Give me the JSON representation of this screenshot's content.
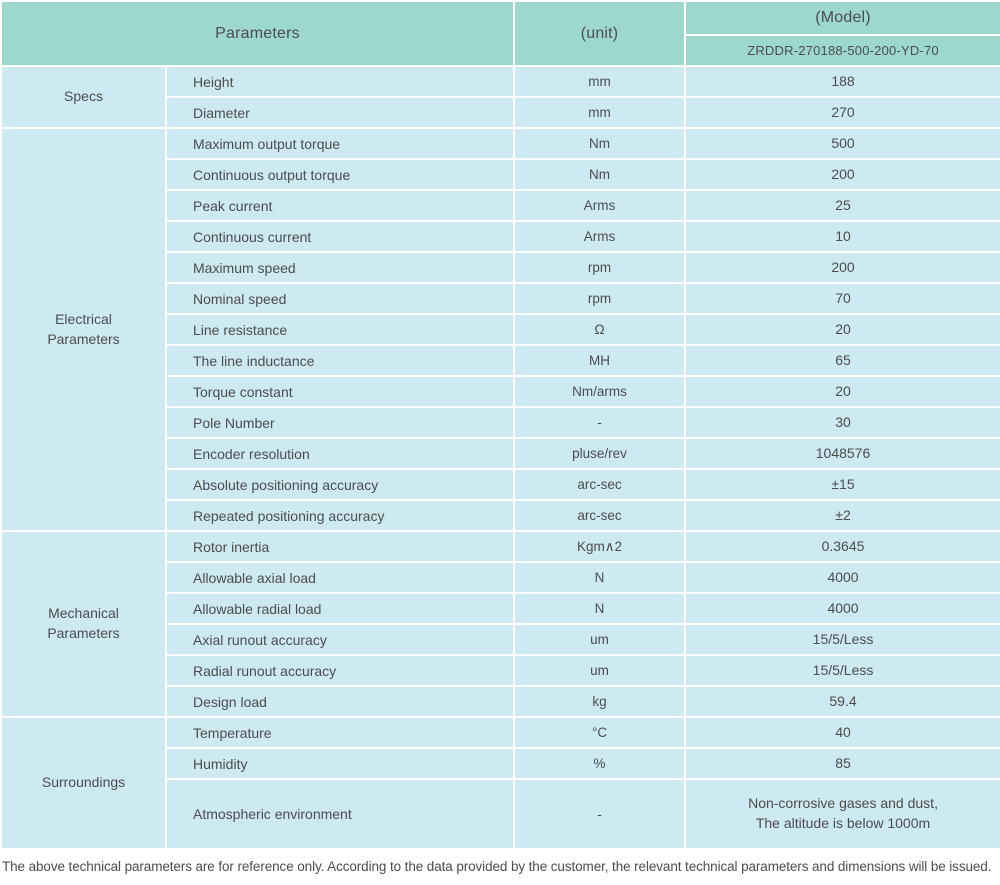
{
  "header": {
    "parameters_label": "Parameters",
    "unit_label": "(unit)",
    "model_label": "(Model)",
    "model_value": "ZRDDR-270188-500-200-YD-70"
  },
  "sections": [
    {
      "label": "Specs",
      "rows": [
        {
          "parameter": "Height",
          "unit": "mm",
          "value": "188"
        },
        {
          "parameter": "Diameter",
          "unit": "mm",
          "value": "270"
        }
      ]
    },
    {
      "label": "Electrical\nParameters",
      "rows": [
        {
          "parameter": "Maximum output torque",
          "unit": "Nm",
          "value": "500"
        },
        {
          "parameter": "Continuous output torque",
          "unit": "Nm",
          "value": "200"
        },
        {
          "parameter": "Peak current",
          "unit": "Arms",
          "value": "25"
        },
        {
          "parameter": "Continuous current",
          "unit": "Arms",
          "value": "10"
        },
        {
          "parameter": "Maximum speed",
          "unit": "rpm",
          "value": "200"
        },
        {
          "parameter": "Nominal speed",
          "unit": "rpm",
          "value": "70"
        },
        {
          "parameter": "Line resistance",
          "unit": "Ω",
          "value": "20"
        },
        {
          "parameter": "The line inductance",
          "unit": "MH",
          "value": "65"
        },
        {
          "parameter": "Torque constant",
          "unit": "Nm/arms",
          "value": "20"
        },
        {
          "parameter": "Pole Number",
          "unit": "-",
          "value": "30"
        },
        {
          "parameter": "Encoder resolution",
          "unit": "pluse/rev",
          "value": "1048576"
        },
        {
          "parameter": "Absolute positioning accuracy",
          "unit": "arc-sec",
          "value": "±15"
        },
        {
          "parameter": "Repeated positioning accuracy",
          "unit": "arc-sec",
          "value": "±2"
        }
      ]
    },
    {
      "label": "Mechanical\nParameters",
      "rows": [
        {
          "parameter": "Rotor inertia",
          "unit": "Kgm∧2",
          "value": "0.3645"
        },
        {
          "parameter": "Allowable axial load",
          "unit": "N",
          "value": "4000"
        },
        {
          "parameter": "Allowable radial load",
          "unit": "N",
          "value": "4000"
        },
        {
          "parameter": "Axial runout accuracy",
          "unit": "um",
          "value": "15/5/Less"
        },
        {
          "parameter": "Radial runout accuracy",
          "unit": "um",
          "value": "15/5/Less"
        },
        {
          "parameter": "Design load",
          "unit": "kg",
          "value": "59.4"
        }
      ]
    },
    {
      "label": "Surroundings",
      "rows": [
        {
          "parameter": "Temperature",
          "unit": "°C",
          "value": "40"
        },
        {
          "parameter": "Humidity",
          "unit": "%",
          "value": "85"
        },
        {
          "parameter": "Atmospheric environment",
          "unit": "-",
          "value": "Non-corrosive gases and dust,\nThe altitude is below 1000m"
        }
      ]
    }
  ],
  "footnote": "The above technical parameters are for reference only. According to the data provided by the customer, the relevant technical parameters and dimensions will be issued.",
  "colors": {
    "header_bg": "#9dd8cf",
    "cell_bg": "#cde9f1",
    "divider": "#ffffff",
    "text": "#4d4d4d"
  }
}
